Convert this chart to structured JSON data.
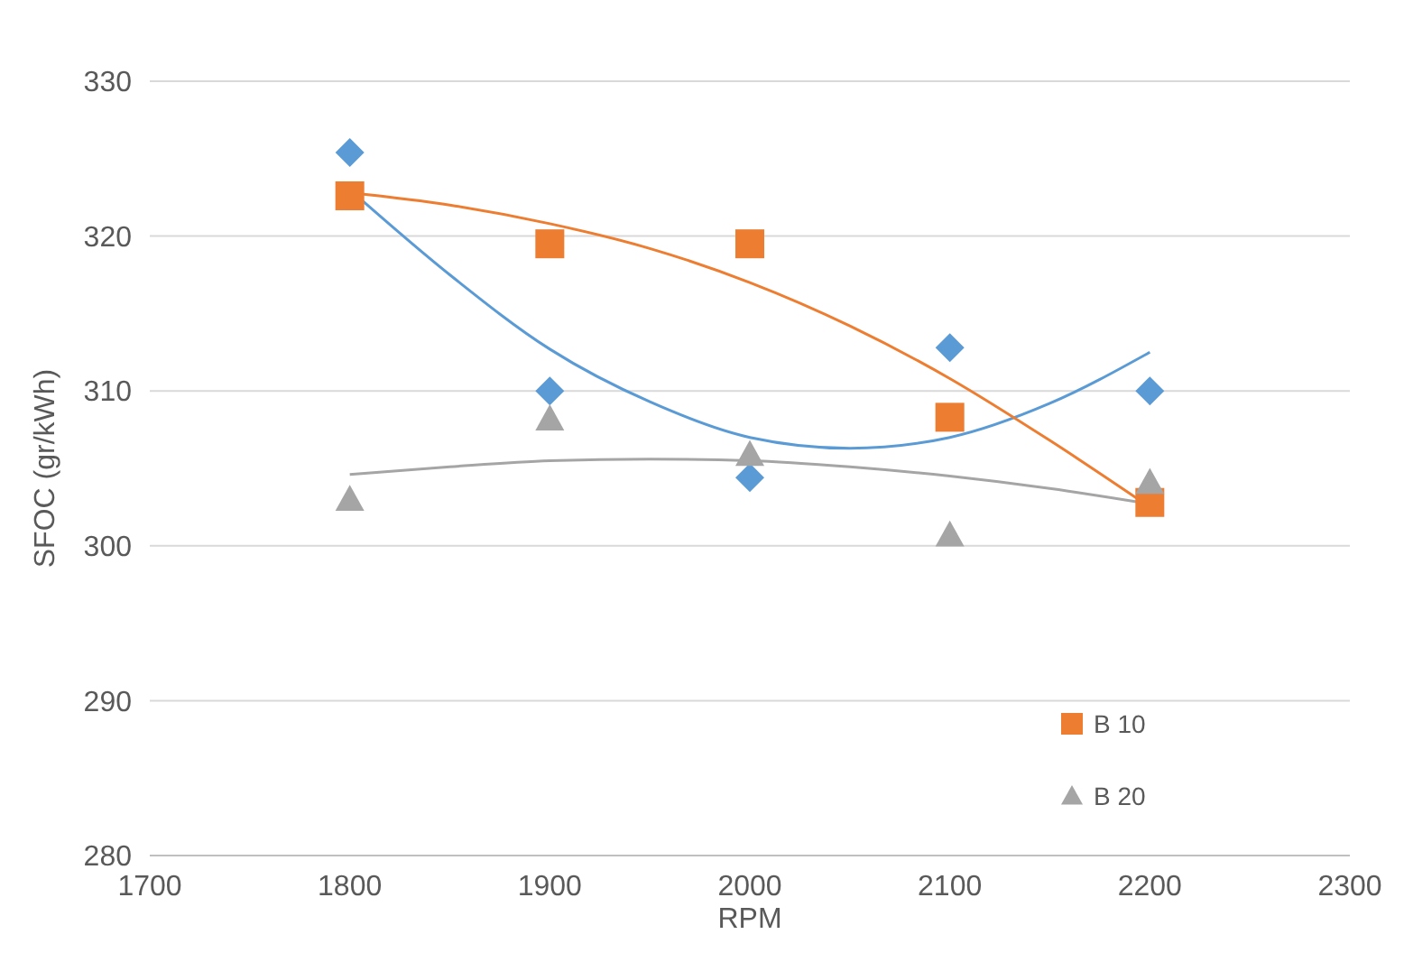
{
  "chart_data": {
    "type": "scatter",
    "xlabel": "RPM",
    "ylabel": "SFOC (gr/kWh)",
    "x": [
      1800,
      1900,
      2000,
      2100,
      2200
    ],
    "series": [
      {
        "color": "#5b9bd5",
        "marker": "diamond",
        "values": [
          325.4,
          310,
          304.4,
          312.8,
          310
        ]
      },
      {
        "name": "B 10",
        "color": "#ed7d31",
        "marker": "square",
        "values": [
          322.6,
          319.5,
          319.5,
          308.3,
          302.8
        ]
      },
      {
        "name": "B 20",
        "color": "#a5a5a5",
        "marker": "triangle",
        "values": [
          303,
          308.2,
          305.9,
          300.7,
          304.1
        ]
      },
      {
        "type": "line",
        "color": "#5b9bd5",
        "marker": "none",
        "x": [
          1800,
          1850,
          1900,
          1950,
          2000,
          2050,
          2100,
          2150,
          2200
        ],
        "values": [
          323,
          317.5,
          312.7,
          309.3,
          307,
          306.3,
          307,
          309.2,
          312.5
        ]
      },
      {
        "type": "line",
        "color": "#ed7d31",
        "marker": "none",
        "x": [
          1800,
          1850,
          1900,
          1950,
          2000,
          2050,
          2100,
          2150,
          2200
        ],
        "values": [
          322.8,
          322,
          320.8,
          319.2,
          317,
          314.2,
          310.8,
          306.8,
          302.5
        ]
      },
      {
        "type": "line",
        "color": "#a5a5a5",
        "marker": "none",
        "x": [
          1800,
          1850,
          1900,
          1950,
          2000,
          2050,
          2100,
          2150,
          2200
        ],
        "values": [
          304.6,
          305.1,
          305.5,
          305.6,
          305.5,
          305.1,
          304.5,
          303.7,
          302.7
        ]
      }
    ],
    "xlim": [
      1700,
      2300
    ],
    "xticks": [
      1700,
      1800,
      1900,
      2000,
      2100,
      2200,
      2300
    ],
    "ylim": [
      280,
      330
    ],
    "yticks": [
      280,
      290,
      300,
      310,
      320,
      330
    ],
    "grid": "y",
    "legend": "right",
    "line_style": "solid"
  }
}
